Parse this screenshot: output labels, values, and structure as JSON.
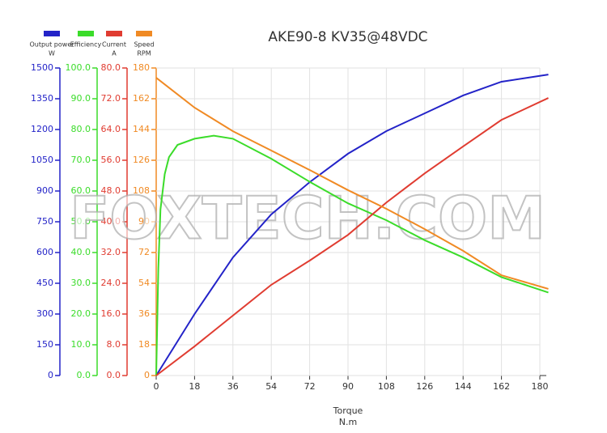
{
  "chart_data": {
    "type": "line",
    "title": "AKE90-8 KV35@48VDC",
    "watermark": "FOXTECH.COM",
    "xlabel": "Torque",
    "xunit": "N.m",
    "xlim": [
      0,
      180
    ],
    "xticks": [
      0,
      18,
      36,
      54,
      72,
      90,
      108,
      126,
      144,
      162,
      180
    ],
    "grid": true,
    "axes": [
      {
        "color": "#2323c8",
        "ylim": [
          0,
          1500
        ],
        "yticks": [
          0,
          150,
          300,
          450,
          600,
          750,
          900,
          1050,
          1200,
          1350,
          1500
        ]
      },
      {
        "color": "#3bdc2a",
        "ylim": [
          0,
          100
        ],
        "yticks": [
          {
            "value": 0,
            "label": "0.0"
          },
          {
            "value": 10,
            "label": "10.0"
          },
          {
            "value": 20,
            "label": "20.0"
          },
          {
            "value": 30,
            "label": "30.0"
          },
          {
            "value": 40,
            "label": "40.0"
          },
          {
            "value": 50,
            "label": "50.0"
          },
          {
            "value": 60,
            "label": "60.0"
          },
          {
            "value": 70,
            "label": "70.0"
          },
          {
            "value": 80,
            "label": "80.0"
          },
          {
            "value": 90,
            "label": "90.0"
          },
          {
            "value": 100,
            "label": "100.0"
          }
        ]
      },
      {
        "color": "#e03c31",
        "ylim": [
          0,
          80
        ],
        "yticks": [
          {
            "value": 0,
            "label": "0.0"
          },
          {
            "value": 8,
            "label": "8.0"
          },
          {
            "value": 16,
            "label": "16.0"
          },
          {
            "value": 24,
            "label": "24.0"
          },
          {
            "value": 32,
            "label": "32.0"
          },
          {
            "value": 40,
            "label": "40.0"
          },
          {
            "value": 48,
            "label": "48.0"
          },
          {
            "value": 56,
            "label": "56.0"
          },
          {
            "value": 64,
            "label": "64.0"
          },
          {
            "value": 72,
            "label": "72.0"
          },
          {
            "value": 80,
            "label": "80.0"
          }
        ]
      },
      {
        "color": "#f08a24",
        "ylim": [
          0,
          180
        ],
        "yticks": [
          0,
          18,
          36,
          54,
          72,
          90,
          108,
          126,
          144,
          162,
          180
        ]
      }
    ],
    "series": [
      {
        "name": "Output power",
        "unit": "W",
        "color": "#2323c8",
        "axis": 0,
        "x": [
          0,
          18,
          36,
          54,
          72,
          90,
          108,
          126,
          144,
          162,
          184
        ],
        "values": [
          0,
          300,
          576,
          786,
          943,
          1082,
          1192,
          1279,
          1366,
          1433,
          1468
        ]
      },
      {
        "name": "Efficiency",
        "color": "#3bdc2a",
        "axis": 1,
        "x": [
          0,
          1,
          2,
          4,
          6,
          10,
          18,
          27,
          36,
          54,
          72,
          90,
          108,
          126,
          144,
          162,
          184
        ],
        "values": [
          0,
          35,
          54,
          65.5,
          71,
          75,
          77,
          78,
          77,
          70.5,
          63,
          56,
          50.5,
          44,
          38.4,
          32,
          27
        ]
      },
      {
        "name": "Current",
        "unit": "A",
        "color": "#e03c31",
        "axis": 2,
        "x": [
          0,
          18,
          36,
          54,
          72,
          90,
          108,
          126,
          144,
          162,
          184
        ],
        "values": [
          0,
          7.6,
          15.6,
          23.6,
          29.9,
          36.6,
          45,
          52.6,
          59.6,
          66.5,
          72.2
        ]
      },
      {
        "name": "Speed",
        "unit": "RPM",
        "color": "#f08a24",
        "axis": 3,
        "x": [
          0,
          18,
          36,
          54,
          72,
          90,
          108,
          126,
          144,
          162,
          184
        ],
        "values": [
          174.3,
          156.8,
          143,
          131.7,
          120.3,
          108.5,
          97.6,
          85.7,
          73,
          58.7,
          50.7
        ]
      }
    ]
  }
}
